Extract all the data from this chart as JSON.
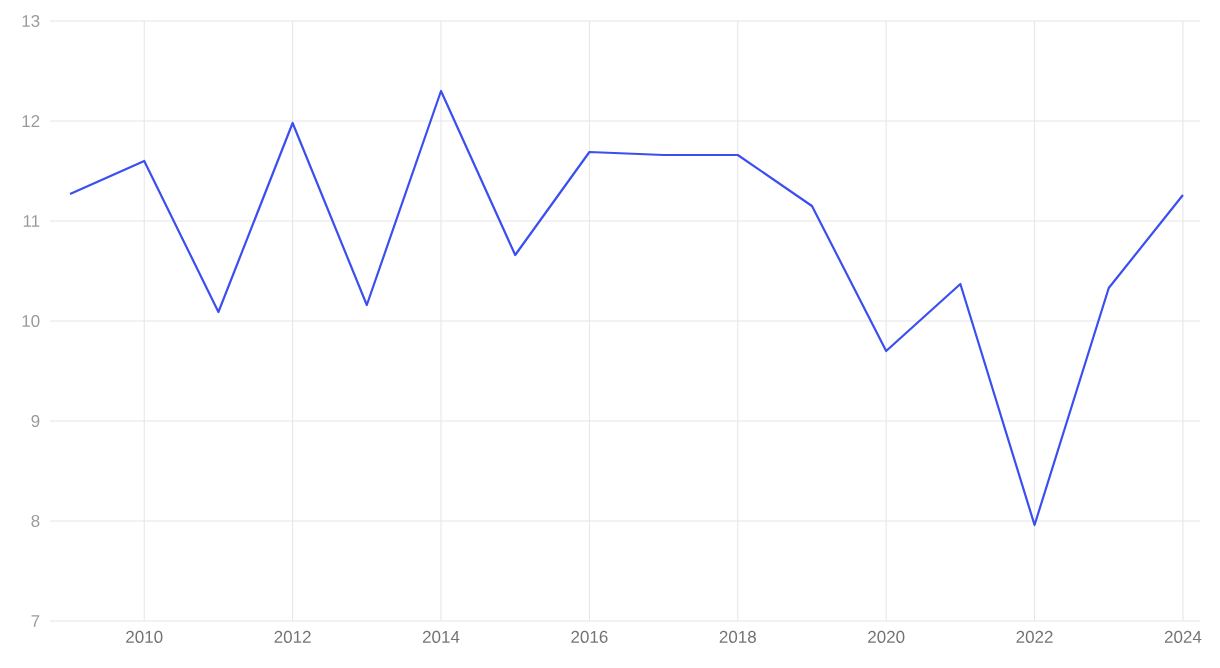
{
  "chart_data": {
    "type": "line",
    "x": [
      2009,
      2010,
      2011,
      2012,
      2013,
      2014,
      2015,
      2016,
      2017,
      2018,
      2019,
      2020,
      2021,
      2022,
      2023,
      2024
    ],
    "series": [
      {
        "color": "#3b4ff0",
        "values": [
          11.27,
          11.6,
          10.09,
          11.98,
          10.16,
          12.3,
          10.66,
          11.69,
          11.66,
          11.66,
          11.15,
          9.7,
          10.37,
          7.96,
          10.33,
          11.26
        ]
      }
    ],
    "xlim": [
      2008.73,
      2024.23
    ],
    "ylim": [
      7,
      13
    ],
    "xticks": [
      2010,
      2012,
      2014,
      2016,
      2018,
      2020,
      2022,
      2024
    ],
    "yticks": [
      7,
      8,
      9,
      10,
      11,
      12,
      13
    ],
    "grid": true
  }
}
